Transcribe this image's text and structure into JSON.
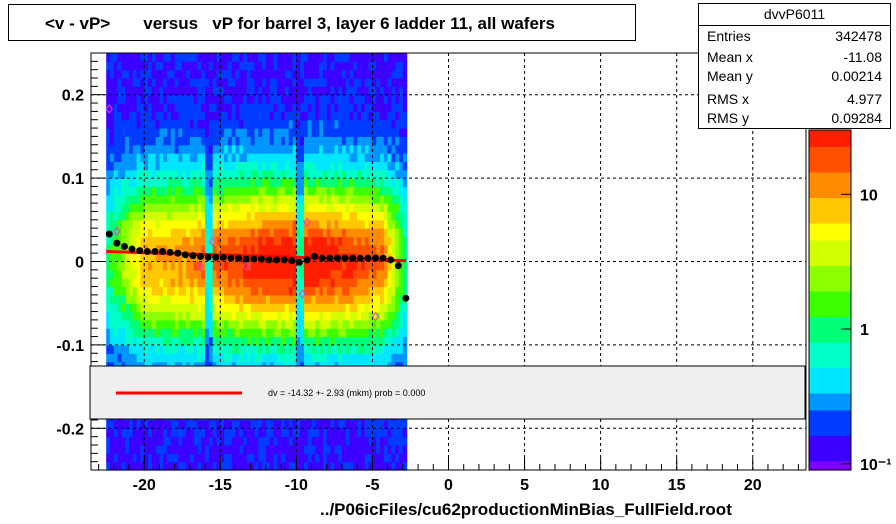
{
  "title": "<v - vP>       versus   vP for barrel 3, layer 6 ladder 11, all wafers",
  "footer": "../P06icFiles/cu62productionMinBias_FullField.root",
  "stats": {
    "name": "dvvP6011",
    "rows": [
      {
        "label": "Entries",
        "value": "342478"
      },
      {
        "label": "Mean x",
        "value": "-11.08"
      },
      {
        "label": "Mean y",
        "value": "0.00214"
      },
      {
        "label": "RMS x",
        "value": "4.977"
      },
      {
        "label": "RMS y",
        "value": "0.09284"
      }
    ]
  },
  "legend": {
    "text": "dv =  -14.32 +-  2.93 (mkm) prob = 0.000",
    "line_color": "#ff0000"
  },
  "chart_data": {
    "type": "heatmap",
    "xlim": [
      -23.5,
      23.5
    ],
    "ylim": [
      -0.25,
      0.25
    ],
    "x_ticks": [
      -20,
      -15,
      -10,
      -5,
      0,
      5,
      10,
      15,
      20
    ],
    "x_tick_labels": [
      "-20",
      "-15",
      "-10",
      "-5",
      "0",
      "5",
      "10",
      "15",
      "20"
    ],
    "y_ticks": [
      0.2,
      0.1,
      0,
      -0.1,
      -0.2
    ],
    "y_tick_labels": [
      "0.2",
      "0.1",
      "0",
      "-0.1",
      "-0.2"
    ],
    "grid": true,
    "colorbar": {
      "scale": "log",
      "tick_labels": [
        "10",
        "1",
        "10⁻¹"
      ],
      "tick_values": [
        10,
        1,
        0.1
      ]
    },
    "occupied_x_range": [
      -22.5,
      -2.8
    ],
    "gap_x_ranges": [
      [
        -16,
        -15.4
      ],
      [
        -10,
        -9.6
      ]
    ],
    "profile_points": {
      "x": [
        -22.3,
        -21.8,
        -21.3,
        -20.8,
        -20.3,
        -19.8,
        -19.3,
        -18.8,
        -18.3,
        -17.8,
        -17.3,
        -16.8,
        -16.3,
        -15.8,
        -15.3,
        -14.8,
        -14.3,
        -13.8,
        -13.3,
        -12.8,
        -12.3,
        -11.8,
        -11.3,
        -10.8,
        -10.3,
        -9.8,
        -9.3,
        -8.8,
        -8.3,
        -7.8,
        -7.3,
        -6.8,
        -6.3,
        -5.8,
        -5.3,
        -4.8,
        -4.3,
        -3.8,
        -3.3,
        -2.8
      ],
      "y": [
        0.033,
        0.022,
        0.018,
        0.015,
        0.013,
        0.012,
        0.012,
        0.012,
        0.011,
        0.01,
        0.008,
        0.007,
        0.006,
        0.005,
        0.005,
        0.005,
        0.004,
        0.004,
        0.003,
        0.003,
        0.003,
        0.002,
        0.002,
        0.002,
        0.001,
        -0.001,
        0.002,
        0.006,
        0.004,
        0.004,
        0.004,
        0.004,
        0.004,
        0.004,
        0.004,
        0.004,
        0.004,
        0.002,
        -0.005,
        -0.044
      ]
    },
    "outlier_points": {
      "x": [
        -22.3,
        -21.8,
        -16.3,
        -15.5,
        -13.3,
        -9.6,
        -9.3,
        -4.8
      ],
      "y": [
        0.183,
        0.036,
        -0.006,
        0.024,
        -0.006,
        -0.039,
        0.047,
        -0.066
      ]
    },
    "fit_line": {
      "x": [
        -22.5,
        -2.8
      ],
      "y": [
        0.012,
        0.001
      ]
    }
  }
}
